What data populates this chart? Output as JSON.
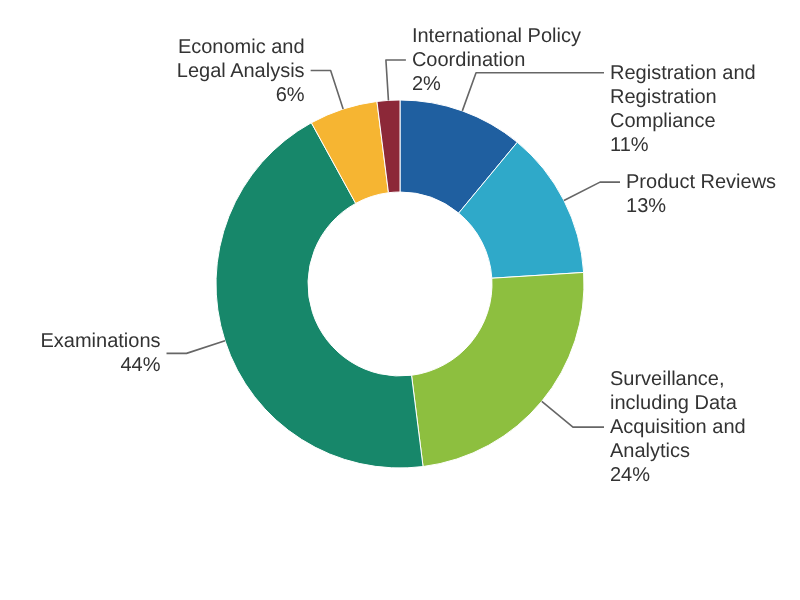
{
  "chart_data": {
    "type": "donut",
    "categories": [
      "Registration and\nRegistration\nCompliance",
      "Product Reviews",
      "Surveillance,\nincluding Data\nAcquisition and\nAnalytics",
      "Examinations",
      "Economic and\nLegal Analysis",
      "International Policy\nCoordination"
    ],
    "values": [
      11,
      13,
      24,
      44,
      6,
      2
    ],
    "value_labels": [
      "11%",
      "13%",
      "24%",
      "44%",
      "6%",
      "2%"
    ],
    "colors": [
      "#1f5fa0",
      "#2fa9c9",
      "#8dbf3f",
      "#17876a",
      "#f6b532",
      "#8c2838"
    ]
  }
}
